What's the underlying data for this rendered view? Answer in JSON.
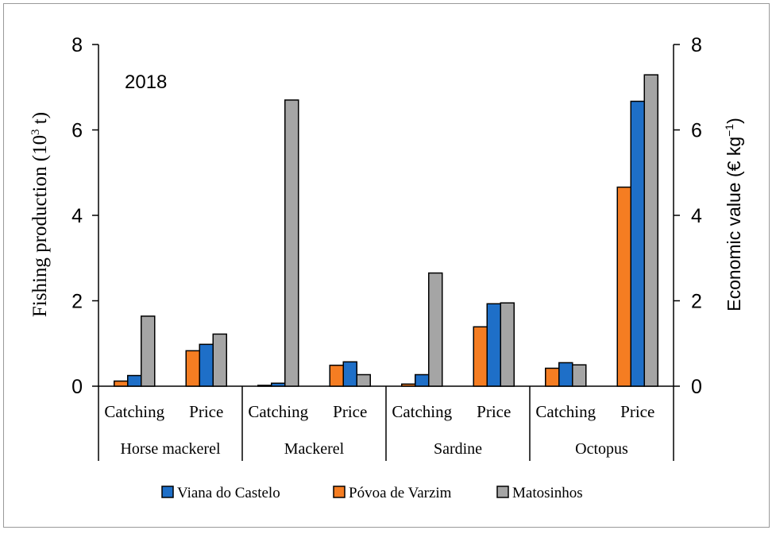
{
  "chart_data": {
    "type": "bar",
    "annotation": "2018",
    "ylabel_left": "Fishing production (10",
    "ylabel_left_sup": "3",
    "ylabel_left_unit": " t)",
    "ylabel_right": "Economic value (€ kg",
    "ylabel_right_sup": "−1",
    "ylabel_right_end": ")",
    "ylim": [
      0,
      8
    ],
    "yticks": [
      "0",
      "2",
      "4",
      "6",
      "8"
    ],
    "groups": [
      "Horse mackerel",
      "Mackerel",
      "Sardine",
      "Octopus"
    ],
    "subcategories": [
      "Catching",
      "Price",
      "Catching",
      "Price",
      "Catching",
      "Price",
      "Catching",
      "Price"
    ],
    "series": [
      {
        "name": "Viana do Castelo",
        "color": "#1e6fc8",
        "values": [
          0.25,
          0.98,
          0.07,
          0.57,
          0.27,
          1.93,
          0.55,
          6.67
        ]
      },
      {
        "name": "Póvoa de Varzim",
        "color": "#f57d22",
        "values": [
          0.12,
          0.83,
          0.02,
          0.49,
          0.05,
          1.39,
          0.42,
          4.66
        ]
      },
      {
        "name": "Matosinhos",
        "color": "#a5a5a5",
        "values": [
          1.64,
          1.22,
          6.7,
          0.27,
          2.65,
          1.95,
          0.5,
          7.29
        ]
      }
    ],
    "bar_order": [
      1,
      0,
      2
    ]
  }
}
